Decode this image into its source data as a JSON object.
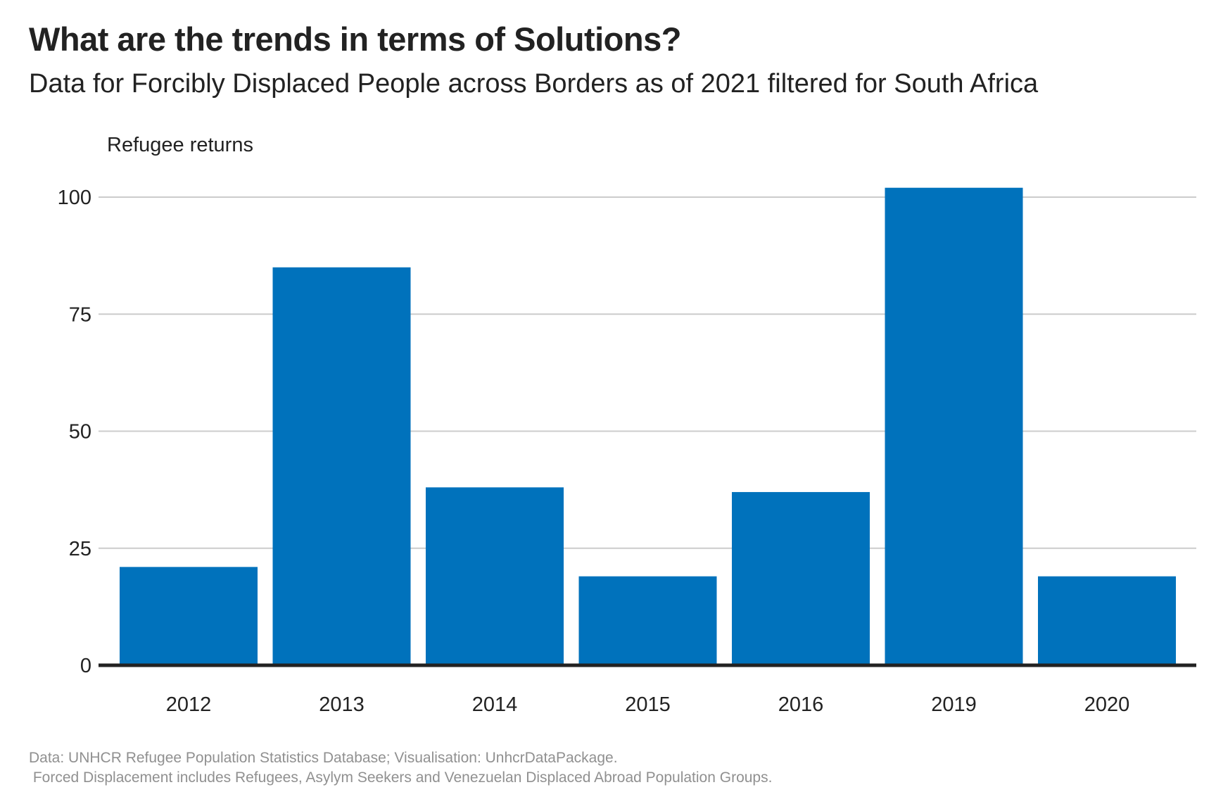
{
  "title": "What are the trends in terms of Solutions?",
  "subtitle": "Data for Forcibly Displaced People across Borders as of 2021 filtered for South Africa",
  "caption": {
    "line1": "Data: UNHCR Refugee Population Statistics Database; Visualisation: UnhcrDataPackage.",
    "line2": " Forced Displacement includes Refugees, Asylym Seekers and Venezuelan Displaced Abroad Population Groups."
  },
  "colors": {
    "bar": "#0072bc",
    "grid": "#cccccc",
    "baseline": "#222222"
  },
  "chart_data": {
    "type": "bar",
    "title": "What are the trends in terms of Solutions?",
    "subtitle": "Data for Forcibly Displaced People across Borders as of 2021 filtered for South Africa",
    "xlabel": "",
    "ylabel": "Refugee returns",
    "categories": [
      "2012",
      "2013",
      "2014",
      "2015",
      "2016",
      "2019",
      "2020"
    ],
    "values": [
      21,
      85,
      38,
      19,
      37,
      102,
      19
    ],
    "ylim": [
      0,
      105
    ],
    "yticks": [
      0,
      25,
      50,
      75,
      100
    ],
    "ytick_labels": [
      "0",
      "25",
      "50",
      "75",
      "100"
    ],
    "grid": "horizontal",
    "legend": "none"
  }
}
